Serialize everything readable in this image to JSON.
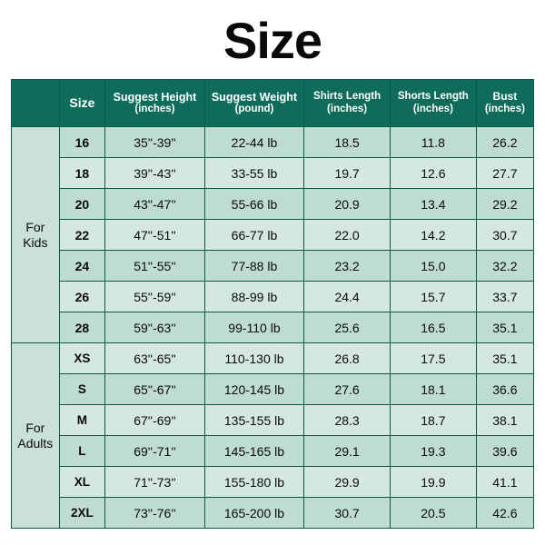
{
  "title": "Size",
  "colors": {
    "header_bg": "#0f6b5a",
    "header_text": "#ffffff",
    "border": "#0a5a4a",
    "row_a": "#bfdcd1",
    "row_b": "#d4e8df",
    "group_bg": "#c9e1d8",
    "page_bg": "#ffffff",
    "text": "#0a0a0a"
  },
  "fonts": {
    "title_size_pt": 42,
    "title_weight": 900,
    "header_size_pt": 9.5,
    "cell_size_pt": 10.5
  },
  "headers": {
    "blank": "",
    "size": "Size",
    "height": "Suggest Height",
    "height_unit": "(inches)",
    "weight": "Suggest Weight",
    "weight_unit": "(pound)",
    "shirts": "Shirts Length",
    "shirts_unit": "(inches)",
    "shorts": "Shorts Length",
    "shorts_unit": "(inches)",
    "bust": "Bust",
    "bust_unit": "(inches)"
  },
  "groups": [
    {
      "label_line1": "For",
      "label_line2": "Kids",
      "rows": [
        {
          "size": "16",
          "height": "35''-39''",
          "weight": "22-44 lb",
          "shirts": "18.5",
          "shorts": "11.8",
          "bust": "26.2"
        },
        {
          "size": "18",
          "height": "39''-43''",
          "weight": "33-55 lb",
          "shirts": "19.7",
          "shorts": "12.6",
          "bust": "27.7"
        },
        {
          "size": "20",
          "height": "43''-47''",
          "weight": "55-66 lb",
          "shirts": "20.9",
          "shorts": "13.4",
          "bust": "29.2"
        },
        {
          "size": "22",
          "height": "47''-51''",
          "weight": "66-77 lb",
          "shirts": "22.0",
          "shorts": "14.2",
          "bust": "30.7"
        },
        {
          "size": "24",
          "height": "51''-55''",
          "weight": "77-88 lb",
          "shirts": "23.2",
          "shorts": "15.0",
          "bust": "32.2"
        },
        {
          "size": "26",
          "height": "55''-59''",
          "weight": "88-99 lb",
          "shirts": "24.4",
          "shorts": "15.7",
          "bust": "33.7"
        },
        {
          "size": "28",
          "height": "59''-63''",
          "weight": "99-110 lb",
          "shirts": "25.6",
          "shorts": "16.5",
          "bust": "35.1"
        }
      ]
    },
    {
      "label_line1": "For",
      "label_line2": "Adults",
      "rows": [
        {
          "size": "XS",
          "height": "63''-65''",
          "weight": "110-130 lb",
          "shirts": "26.8",
          "shorts": "17.5",
          "bust": "35.1"
        },
        {
          "size": "S",
          "height": "65''-67''",
          "weight": "120-145 lb",
          "shirts": "27.6",
          "shorts": "18.1",
          "bust": "36.6"
        },
        {
          "size": "M",
          "height": "67''-69''",
          "weight": "135-155 lb",
          "shirts": "28.3",
          "shorts": "18.7",
          "bust": "38.1"
        },
        {
          "size": "L",
          "height": "69''-71''",
          "weight": "145-165 lb",
          "shirts": "29.1",
          "shorts": "19.3",
          "bust": "39.6"
        },
        {
          "size": "XL",
          "height": "71''-73''",
          "weight": "155-180 lb",
          "shirts": "29.9",
          "shorts": "19.9",
          "bust": "41.1"
        },
        {
          "size": "2XL",
          "height": "73''-76''",
          "weight": "165-200 lb",
          "shirts": "30.7",
          "shorts": "20.5",
          "bust": "42.6"
        }
      ]
    }
  ]
}
